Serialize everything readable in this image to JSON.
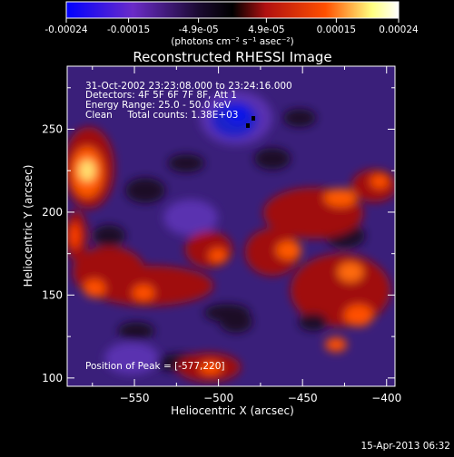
{
  "colorbar": {
    "tick_labels": [
      "-0.00024",
      "-0.00015",
      "-4.9e-05",
      "4.9e-05",
      "0.00015",
      "0.00024"
    ],
    "tick_values": [
      -0.00024,
      -0.00015,
      -4.9e-05,
      4.9e-05,
      0.00015,
      0.00024
    ],
    "range": [
      -0.00024,
      0.00024
    ],
    "units": "(photons cm⁻² s⁻¹ asec⁻²)",
    "colors": [
      "#0000ff",
      "#6a2bc8",
      "#000000",
      "#b01010",
      "#ff5000",
      "#ffff80",
      "#ffffff"
    ]
  },
  "chart_data": {
    "type": "heatmap",
    "title": "Reconstructed RHESSI Image",
    "xlabel": "Heliocentric X (arcsec)",
    "ylabel": "Heliocentric Y (arcsec)",
    "xlim": [
      -590,
      -395
    ],
    "ylim": [
      95,
      288
    ],
    "x_ticks": [
      -550,
      -500,
      -450,
      -400
    ],
    "y_ticks": [
      100,
      150,
      200,
      250
    ],
    "peak": [
      -577,
      220
    ],
    "annotations": [
      "31-Oct-2002 23:23:08.000 to 23:24:16.000",
      "Detectors: 4F 5F 6F 7F 8F, Att 1",
      "Energy Range: 25.0 - 50.0 keV",
      "Clean     Total counts: 1.38E+03"
    ],
    "peak_label": "Position of Peak = [-577,220]"
  },
  "footer": {
    "timestamp": "15-Apr-2013 06:32"
  }
}
